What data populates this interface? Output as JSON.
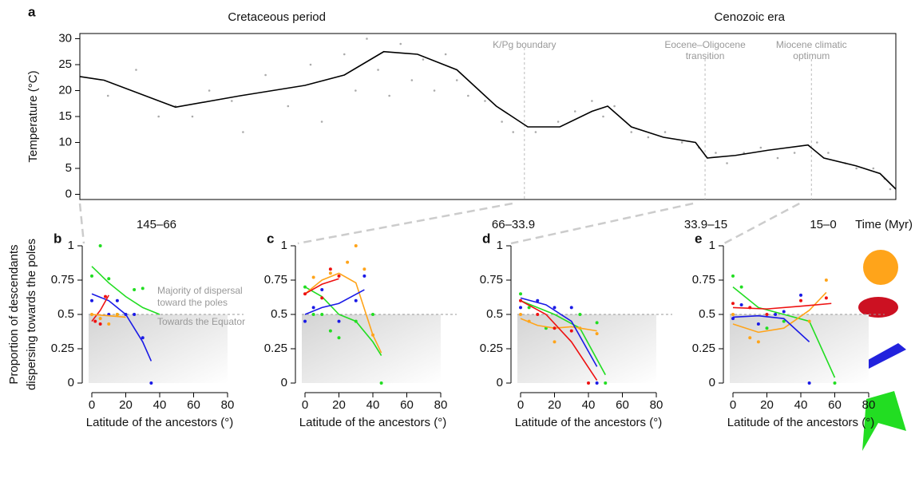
{
  "chart_data": [
    {
      "type": "line",
      "title": "a",
      "ylabel": "Temperature (°C)",
      "xlim": [
        145,
        0
      ],
      "ylim": [
        -1,
        31
      ],
      "yticks": [
        0,
        5,
        10,
        15,
        20,
        25,
        30
      ],
      "eras": [
        {
          "label": "Cretaceous period",
          "x": 110
        },
        {
          "label": "Cenozoic era",
          "x": 26
        }
      ],
      "boundaries": [
        {
          "x": 66,
          "lines": [
            "K/Pg boundary"
          ]
        },
        {
          "x": 33.9,
          "lines": [
            "Eocene–Oligocene",
            "transition"
          ]
        },
        {
          "x": 15,
          "lines": [
            "Miocene climatic",
            "optimum"
          ]
        }
      ],
      "periods": [
        "145–66",
        "66–33.9",
        "33.9–15",
        "15–0"
      ],
      "xlabel": "Time (Myr)",
      "series": [
        {
          "kind": "scatter",
          "color": "#aaaaaa",
          "x": [
            140,
            135,
            131,
            128,
            125,
            122,
            118,
            116,
            112,
            108,
            104,
            102,
            98,
            96,
            94,
            92,
            90,
            88,
            86,
            84,
            82,
            80,
            78,
            76,
            73,
            70,
            68,
            64,
            60,
            57,
            54,
            52,
            50,
            47,
            44,
            41,
            38,
            35,
            32,
            30,
            27,
            24,
            21,
            18,
            14,
            12,
            9,
            7,
            4,
            2,
            1
          ],
          "values": [
            19,
            24,
            15,
            17,
            15,
            20,
            18,
            12,
            23,
            17,
            25,
            14,
            27,
            20,
            30,
            24,
            19,
            29,
            22,
            26,
            20,
            27,
            22,
            19,
            18,
            14,
            12,
            12,
            14,
            16,
            18,
            15,
            17,
            12,
            11,
            12,
            10,
            9,
            8,
            6,
            8,
            9,
            7,
            8,
            10,
            8,
            6,
            5,
            5,
            3,
            1
          ]
        },
        {
          "kind": "line",
          "color": "#000000",
          "x": [
            145,
            140.7,
            128,
            116.5,
            105,
            98,
            91,
            85,
            78,
            71,
            65.4,
            59.7,
            54,
            51.2,
            47,
            41.3,
            35.6,
            33.5,
            28.5,
            22.7,
            15.6,
            12.8,
            7.1,
            2.8,
            0
          ],
          "values": [
            22.7,
            22,
            16.8,
            19,
            21,
            23,
            27.5,
            27,
            24,
            17,
            13,
            13,
            16,
            17,
            13,
            11,
            10,
            7,
            7.5,
            8.5,
            9.5,
            7,
            5.5,
            4,
            1
          ]
        }
      ]
    },
    {
      "type": "scatter",
      "title": "b",
      "ylabel": [
        "Proportion of descendants",
        "dispersing towards the poles"
      ],
      "xlabel": "Latitude of the ancestors (°)",
      "xlim": [
        0,
        80
      ],
      "ylim": [
        0,
        1
      ],
      "xticks": [
        0,
        20,
        40,
        60,
        80
      ],
      "yticks": [
        0,
        0.25,
        0.5,
        0.75,
        1
      ],
      "reference": 0.5,
      "annotations": [
        "Majority of dispersal",
        "toward the poles",
        "Towards the Equator"
      ],
      "series": [
        {
          "color": "#22dd22",
          "x": [
            0,
            5,
            10,
            15,
            25,
            30
          ],
          "values": [
            0.78,
            1,
            0.76,
            0.5,
            0.68,
            0.69
          ],
          "fit": {
            "x": [
              0,
              10,
              20,
              30,
              40
            ],
            "values": [
              0.85,
              0.73,
              0.63,
              0.55,
              0.5
            ]
          }
        },
        {
          "color": "#1a1ae6",
          "x": [
            0,
            10,
            15,
            20,
            25,
            30,
            35
          ],
          "values": [
            0.6,
            0.5,
            0.6,
            0.5,
            0.5,
            0.33,
            0
          ],
          "fit": {
            "x": [
              0,
              10,
              20,
              30,
              35
            ],
            "values": [
              0.65,
              0.6,
              0.5,
              0.3,
              0.16
            ]
          }
        },
        {
          "color": "#ee1111",
          "x": [
            2,
            5,
            8
          ],
          "values": [
            0.45,
            0.43,
            0.63
          ],
          "fit": {
            "x": [
              0,
              5,
              10
            ],
            "values": [
              0.45,
              0.53,
              0.64
            ]
          }
        },
        {
          "color": "#ffa41a",
          "x": [
            0,
            5,
            10,
            15
          ],
          "values": [
            0.5,
            0.47,
            0.43,
            0.5
          ],
          "fit": {
            "x": [
              0,
              10,
              20
            ],
            "values": [
              0.5,
              0.49,
              0.48
            ]
          }
        }
      ]
    },
    {
      "type": "scatter",
      "title": "c",
      "xlabel": "Latitude of the ancestors (°)",
      "xlim": [
        0,
        80
      ],
      "ylim": [
        0,
        1
      ],
      "xticks": [
        0,
        20,
        40,
        60,
        80
      ],
      "yticks": [
        0,
        0.25,
        0.5,
        0.75,
        1
      ],
      "reference": 0.5,
      "series": [
        {
          "color": "#22dd22",
          "x": [
            0,
            5,
            10,
            15,
            20,
            30,
            40,
            45
          ],
          "values": [
            0.7,
            0.5,
            0.5,
            0.38,
            0.33,
            0.45,
            0.5,
            0
          ],
          "fit": {
            "x": [
              0,
              10,
              20,
              30,
              40,
              45
            ],
            "values": [
              0.7,
              0.63,
              0.5,
              0.45,
              0.3,
              0.2
            ]
          }
        },
        {
          "color": "#ffa41a",
          "x": [
            5,
            15,
            25,
            30,
            35,
            40
          ],
          "values": [
            0.77,
            0.8,
            0.88,
            1,
            0.83,
            0.35
          ],
          "fit": {
            "x": [
              0,
              10,
              20,
              30,
              40,
              45
            ],
            "values": [
              0.65,
              0.75,
              0.8,
              0.73,
              0.35,
              0.22
            ]
          }
        },
        {
          "color": "#ee1111",
          "x": [
            0,
            10,
            15,
            20
          ],
          "values": [
            0.65,
            0.62,
            0.83,
            0.78
          ],
          "fit": {
            "x": [
              0,
              10,
              20
            ],
            "values": [
              0.65,
              0.72,
              0.76
            ]
          }
        },
        {
          "color": "#1a1ae6",
          "x": [
            0,
            5,
            10,
            20,
            30,
            35
          ],
          "values": [
            0.45,
            0.55,
            0.68,
            0.45,
            0.6,
            0.78
          ],
          "fit": {
            "x": [
              0,
              10,
              20,
              35
            ],
            "values": [
              0.5,
              0.55,
              0.58,
              0.68
            ]
          }
        }
      ]
    },
    {
      "type": "scatter",
      "title": "d",
      "xlabel": "Latitude of the ancestors (°)",
      "xlim": [
        0,
        80
      ],
      "ylim": [
        0,
        1
      ],
      "xticks": [
        0,
        20,
        40,
        60,
        80
      ],
      "yticks": [
        0,
        0.25,
        0.5,
        0.75,
        1
      ],
      "reference": 0.5,
      "series": [
        {
          "color": "#22dd22",
          "x": [
            0,
            5,
            15,
            35,
            45,
            50
          ],
          "values": [
            0.65,
            0.55,
            0.4,
            0.5,
            0.44,
            0
          ],
          "fit": {
            "x": [
              0,
              20,
              35,
              50
            ],
            "values": [
              0.6,
              0.5,
              0.4,
              0.06
            ]
          }
        },
        {
          "color": "#ffa41a",
          "x": [
            0,
            5,
            20,
            35,
            45
          ],
          "values": [
            0.5,
            0.45,
            0.3,
            0.4,
            0.36
          ],
          "fit": {
            "x": [
              0,
              10,
              20,
              30,
              45
            ],
            "values": [
              0.47,
              0.42,
              0.4,
              0.41,
              0.38
            ]
          }
        },
        {
          "color": "#ee1111",
          "x": [
            0,
            10,
            20,
            30,
            40
          ],
          "values": [
            0.6,
            0.5,
            0.4,
            0.38,
            0
          ],
          "fit": {
            "x": [
              0,
              15,
              30,
              45
            ],
            "values": [
              0.6,
              0.5,
              0.3,
              0.02
            ]
          }
        },
        {
          "color": "#1a1ae6",
          "x": [
            0,
            10,
            20,
            30,
            45
          ],
          "values": [
            0.55,
            0.6,
            0.55,
            0.55,
            0
          ],
          "fit": {
            "x": [
              0,
              15,
              30,
              45
            ],
            "values": [
              0.62,
              0.57,
              0.45,
              0.12
            ]
          }
        }
      ]
    },
    {
      "type": "scatter",
      "title": "e",
      "xlabel": "Latitude of the ancestors (°)",
      "xlim": [
        0,
        80
      ],
      "ylim": [
        0,
        1
      ],
      "xticks": [
        0,
        20,
        40,
        60,
        80
      ],
      "yticks": [
        0,
        0.25,
        0.5,
        0.75,
        1
      ],
      "reference": 0.5,
      "series": [
        {
          "color": "#22dd22",
          "x": [
            0,
            5,
            20,
            30,
            60
          ],
          "values": [
            0.78,
            0.7,
            0.4,
            0.45,
            0
          ],
          "fit": {
            "x": [
              0,
              15,
              30,
              45,
              60
            ],
            "values": [
              0.7,
              0.55,
              0.5,
              0.45,
              0.04
            ]
          }
        },
        {
          "color": "#ffa41a",
          "x": [
            0,
            10,
            15,
            45,
            55
          ],
          "values": [
            0.5,
            0.33,
            0.3,
            0.45,
            0.75
          ],
          "fit": {
            "x": [
              0,
              15,
              30,
              45,
              55
            ],
            "values": [
              0.43,
              0.37,
              0.4,
              0.53,
              0.66
            ]
          }
        },
        {
          "color": "#ee1111",
          "x": [
            0,
            10,
            20,
            40,
            55
          ],
          "values": [
            0.58,
            0.55,
            0.5,
            0.6,
            0.62
          ],
          "fit": {
            "x": [
              0,
              20,
              40,
              58
            ],
            "values": [
              0.55,
              0.54,
              0.56,
              0.58
            ]
          }
        },
        {
          "color": "#1a1ae6",
          "x": [
            0,
            5,
            15,
            25,
            30,
            40,
            45
          ],
          "values": [
            0.47,
            0.57,
            0.43,
            0.5,
            0.52,
            0.64,
            0
          ],
          "fit": {
            "x": [
              0,
              15,
              30,
              45
            ],
            "values": [
              0.48,
              0.49,
              0.47,
              0.3
            ]
          }
        }
      ]
    }
  ]
}
